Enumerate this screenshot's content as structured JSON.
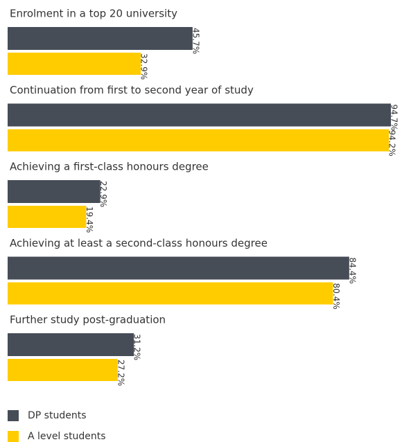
{
  "chart_data": {
    "type": "grouped-hbar",
    "categories": [
      "Enrolment in a top 20 university",
      "Continuation from first to second year of study",
      "Achieving a first-class honours degree",
      "Achieving at least a second-class honours degree",
      "Further study post-graduation"
    ],
    "series": [
      {
        "name": "DP students",
        "color": "#474d57",
        "values": [
          45.7,
          94.7,
          22.9,
          84.4,
          31.2
        ],
        "value_labels": [
          "45.7%",
          "94.7%",
          "22.9%",
          "84.4%",
          "31.2%"
        ]
      },
      {
        "name": "A level students",
        "color": "#ffcc00",
        "values": [
          32.9,
          94.2,
          19.4,
          80.4,
          27.2
        ],
        "value_labels": [
          "32.9%",
          "94.2%",
          "19.4%",
          "80.4%",
          "27.2%"
        ]
      }
    ],
    "legend": "bottom-left"
  }
}
